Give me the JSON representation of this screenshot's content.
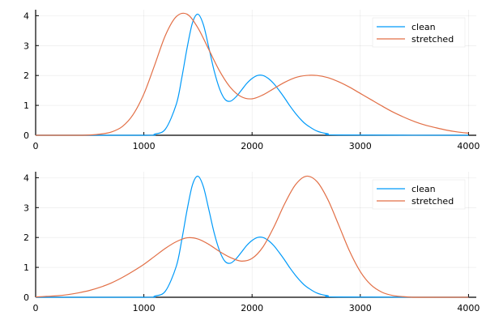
{
  "chart_data": [
    {
      "type": "line",
      "title": "",
      "xlabel": "",
      "ylabel": "",
      "xlim": [
        0,
        4000
      ],
      "ylim": [
        0,
        4.2
      ],
      "x_ticks": [
        "0",
        "1000",
        "2000",
        "3000",
        "4000"
      ],
      "y_ticks": [
        "0",
        "1",
        "2",
        "3",
        "4"
      ],
      "grid": true,
      "legend_position": "top-right",
      "series": [
        {
          "name": "clean",
          "color": "#009af9",
          "x": [
            0,
            1000,
            1100,
            1200,
            1300,
            1350,
            1400,
            1450,
            1500,
            1550,
            1600,
            1650,
            1700,
            1750,
            1800,
            1850,
            1900,
            1950,
            2000,
            2050,
            2100,
            2150,
            2200,
            2250,
            2300,
            2350,
            2400,
            2450,
            2500,
            2600,
            2700,
            2800,
            4000
          ],
          "y": [
            0,
            0.0,
            0.04,
            0.21,
            1.04,
            1.91,
            2.93,
            3.77,
            4.05,
            3.7,
            2.94,
            2.15,
            1.55,
            1.2,
            1.14,
            1.28,
            1.5,
            1.73,
            1.9,
            2.0,
            2.0,
            1.9,
            1.73,
            1.5,
            1.25,
            0.98,
            0.74,
            0.53,
            0.36,
            0.14,
            0.05,
            0.01,
            0
          ]
        },
        {
          "name": "stretched",
          "color": "#e26f46",
          "x": [
            0,
            200,
            400,
            500,
            600,
            700,
            800,
            900,
            1000,
            1100,
            1200,
            1300,
            1400,
            1500,
            1600,
            1700,
            1800,
            1900,
            2000,
            2100,
            2200,
            2300,
            2400,
            2500,
            2600,
            2700,
            2800,
            2900,
            3000,
            3100,
            3200,
            3300,
            3400,
            3500,
            3600,
            3700,
            3800,
            3900,
            4000
          ],
          "y": [
            0,
            0.0,
            0.0,
            0.01,
            0.04,
            0.11,
            0.29,
            0.69,
            1.38,
            2.35,
            3.35,
            3.97,
            4.05,
            3.59,
            2.87,
            2.15,
            1.6,
            1.29,
            1.22,
            1.35,
            1.56,
            1.77,
            1.93,
            2.0,
            2.0,
            1.93,
            1.79,
            1.61,
            1.4,
            1.19,
            0.98,
            0.78,
            0.61,
            0.46,
            0.34,
            0.25,
            0.17,
            0.11,
            0.07
          ]
        }
      ]
    },
    {
      "type": "line",
      "title": "",
      "xlabel": "",
      "ylabel": "",
      "xlim": [
        0,
        4000
      ],
      "ylim": [
        0,
        4.2
      ],
      "x_ticks": [
        "0",
        "1000",
        "2000",
        "3000",
        "4000"
      ],
      "y_ticks": [
        "0",
        "1",
        "2",
        "3",
        "4"
      ],
      "grid": true,
      "legend_position": "top-right",
      "series": [
        {
          "name": "clean",
          "color": "#009af9",
          "x": [
            0,
            1000,
            1100,
            1200,
            1300,
            1350,
            1400,
            1450,
            1500,
            1550,
            1600,
            1650,
            1700,
            1750,
            1800,
            1850,
            1900,
            1950,
            2000,
            2050,
            2100,
            2150,
            2200,
            2250,
            2300,
            2350,
            2400,
            2450,
            2500,
            2600,
            2700,
            2800,
            4000
          ],
          "y": [
            0,
            0.0,
            0.04,
            0.21,
            1.04,
            1.91,
            2.93,
            3.77,
            4.05,
            3.7,
            2.94,
            2.15,
            1.55,
            1.2,
            1.14,
            1.28,
            1.5,
            1.73,
            1.9,
            2.0,
            2.0,
            1.9,
            1.73,
            1.5,
            1.25,
            0.98,
            0.74,
            0.53,
            0.36,
            0.14,
            0.05,
            0.01,
            0
          ]
        },
        {
          "name": "stretched",
          "color": "#e26f46",
          "x": [
            0,
            100,
            200,
            300,
            400,
            500,
            600,
            700,
            800,
            900,
            1000,
            1100,
            1200,
            1300,
            1400,
            1500,
            1600,
            1700,
            1800,
            1900,
            2000,
            2100,
            2200,
            2300,
            2400,
            2500,
            2600,
            2700,
            2800,
            2900,
            3000,
            3100,
            3200,
            3300,
            3400,
            3500,
            3600,
            3700,
            3800,
            3900,
            4000
          ],
          "y": [
            0.01,
            0.03,
            0.05,
            0.09,
            0.15,
            0.23,
            0.34,
            0.48,
            0.66,
            0.87,
            1.1,
            1.37,
            1.64,
            1.86,
            1.99,
            1.95,
            1.77,
            1.53,
            1.33,
            1.21,
            1.3,
            1.68,
            2.34,
            3.12,
            3.76,
            4.05,
            3.87,
            3.27,
            2.42,
            1.55,
            0.86,
            0.41,
            0.17,
            0.06,
            0.02,
            0.0,
            0.0,
            0.0,
            0.0,
            0.0,
            0
          ]
        }
      ]
    }
  ]
}
